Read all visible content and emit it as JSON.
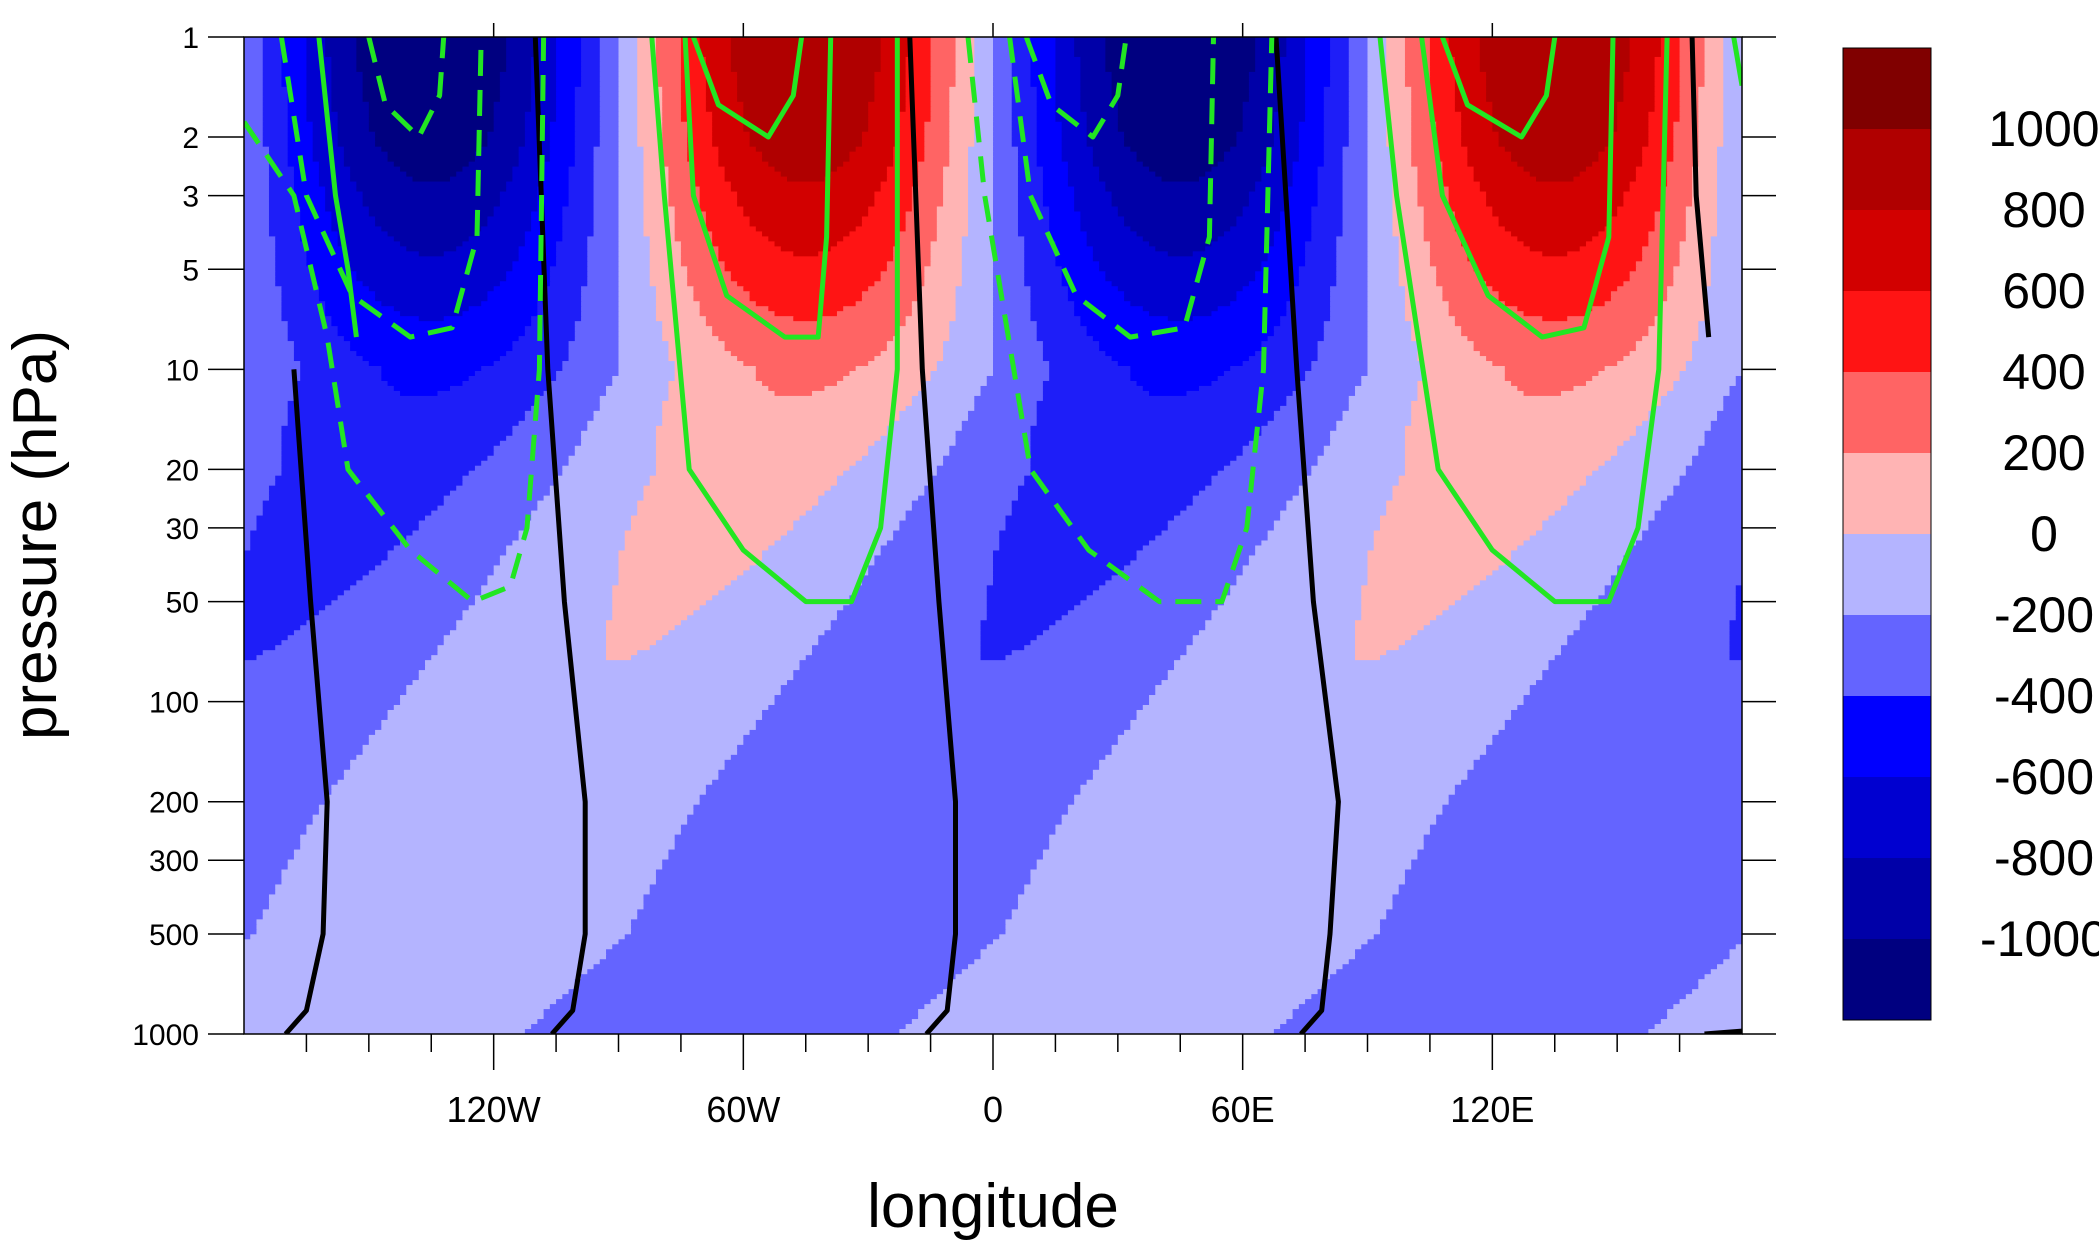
{
  "chart_data": {
    "type": "contour",
    "title": "",
    "xlabel": "longitude",
    "ylabel": "pressure (hPa)",
    "x_axis": {
      "range": [
        -180,
        180
      ],
      "ticks": [
        {
          "value": -120,
          "label": "120W"
        },
        {
          "value": -60,
          "label": "60W"
        },
        {
          "value": 0,
          "label": "0"
        },
        {
          "value": 60,
          "label": "60E"
        },
        {
          "value": 120,
          "label": "120E"
        }
      ],
      "minor_ticks": [
        -165,
        -150,
        -135,
        -105,
        -90,
        -75,
        -45,
        -30,
        -15,
        15,
        30,
        45,
        75,
        90,
        105,
        135,
        150,
        165
      ]
    },
    "y_axis": {
      "scale": "log",
      "reversed": true,
      "range": [
        1000,
        1
      ],
      "ticks": [
        {
          "value": 1,
          "label": "1"
        },
        {
          "value": 2,
          "label": "2"
        },
        {
          "value": 3,
          "label": "3"
        },
        {
          "value": 5,
          "label": "5"
        },
        {
          "value": 10,
          "label": "10"
        },
        {
          "value": 20,
          "label": "20"
        },
        {
          "value": 30,
          "label": "30"
        },
        {
          "value": 50,
          "label": "50"
        },
        {
          "value": 100,
          "label": "100"
        },
        {
          "value": 200,
          "label": "200"
        },
        {
          "value": 300,
          "label": "300"
        },
        {
          "value": 500,
          "label": "500"
        },
        {
          "value": 1000,
          "label": "1000"
        }
      ]
    },
    "shaded_field": {
      "field_model": "amplitude(p) * cos(lon - phase(p)), wavenumber 2",
      "amplitude_profile": [
        {
          "p": 1,
          "amplitude": 1260
        },
        {
          "p": 2,
          "amplitude": 1130
        },
        {
          "p": 5,
          "amplitude": 760
        },
        {
          "p": 10,
          "amplitude": 440
        },
        {
          "p": 20,
          "amplitude": 290
        },
        {
          "p": 50,
          "amplitude": 215
        },
        {
          "p": 100,
          "amplitude": 190
        },
        {
          "p": 200,
          "amplitude": 175
        },
        {
          "p": 300,
          "amplitude": 170
        },
        {
          "p": 500,
          "amplitude": 165
        },
        {
          "p": 1000,
          "amplitude": 160
        }
      ],
      "phase_profile": [
        {
          "p": 1,
          "phase": 135
        },
        {
          "p": 10,
          "phase": 135
        },
        {
          "p": 20,
          "phase": 122
        },
        {
          "p": 30,
          "phase": 112
        },
        {
          "p": 50,
          "phase": 100
        },
        {
          "p": 100,
          "phase": 82
        },
        {
          "p": 200,
          "phase": 64
        },
        {
          "p": 300,
          "phase": 56
        },
        {
          "p": 500,
          "phase": 47
        },
        {
          "p": 1000,
          "phase": 22
        }
      ],
      "levels": [
        -1000,
        -800,
        -600,
        -400,
        -200,
        0,
        200,
        400,
        600,
        800,
        1000
      ],
      "colors": [
        "#000080",
        "#0000a8",
        "#0000d0",
        "#0000ff",
        "#1e1ef8",
        "#6464ff",
        "#b4b4ff",
        "#ffb4b4",
        "#ff6464",
        "#ff1414",
        "#d20000",
        "#b00000",
        "#800000"
      ]
    },
    "line_contours": {
      "black_solid": {
        "description": "zero lines of the overlay field",
        "paths": [
          [
            [
              -168,
              10
            ],
            [
              -164,
              50
            ],
            [
              -160,
              200
            ],
            [
              -161,
              500
            ],
            [
              -165,
              850
            ],
            [
              -170,
              1000
            ]
          ],
          [
            [
              -110,
              1
            ],
            [
              -107,
              10
            ],
            [
              -103,
              50
            ],
            [
              -98,
              200
            ],
            [
              -98,
              500
            ],
            [
              -101,
              850
            ],
            [
              -106,
              1000
            ]
          ],
          [
            [
              -20,
              1
            ],
            [
              -17,
              10
            ],
            [
              -13,
              50
            ],
            [
              -9,
              200
            ],
            [
              -9,
              500
            ],
            [
              -11,
              850
            ],
            [
              -16,
              1000
            ]
          ],
          [
            [
              68,
              1
            ],
            [
              73,
              10
            ],
            [
              77,
              50
            ],
            [
              83,
              200
            ],
            [
              81,
              500
            ],
            [
              79,
              850
            ],
            [
              74,
              1000
            ]
          ],
          [
            [
              168,
              1
            ],
            [
              169,
              3
            ],
            [
              172,
              8
            ]
          ],
          [
            [
              171,
              1000
            ],
            [
              180,
              980
            ]
          ]
        ]
      },
      "green_solid": {
        "description": "positive contours of the overlay field",
        "paths": [
          [
            [
              -162,
              1
            ],
            [
              -158,
              3
            ],
            [
              -155,
              5
            ],
            [
              -153,
              8
            ]
          ],
          [
            [
              -82,
              1
            ],
            [
              -79,
              3
            ],
            [
              -73,
              20
            ],
            [
              -60,
              35
            ],
            [
              -45,
              50
            ],
            [
              -34,
              50
            ],
            [
              -27,
              30
            ],
            [
              -23,
              10
            ],
            [
              -23,
              1
            ]
          ],
          [
            [
              -72,
              1
            ],
            [
              -66,
              1.6
            ],
            [
              -54,
              2
            ],
            [
              -48,
              1.5
            ],
            [
              -46,
              1
            ]
          ],
          [
            [
              -74,
              1
            ],
            [
              -72,
              3
            ],
            [
              -64,
              6
            ],
            [
              -50,
              8
            ],
            [
              -42,
              8
            ],
            [
              -40,
              4
            ],
            [
              -39,
              1
            ]
          ],
          [
            [
              93,
              1
            ],
            [
              97,
              3
            ],
            [
              107,
              20
            ],
            [
              120,
              35
            ],
            [
              135,
              50
            ],
            [
              148,
              50
            ],
            [
              155,
              30
            ],
            [
              160,
              10
            ],
            [
              162,
              1
            ]
          ],
          [
            [
              108,
              1
            ],
            [
              114,
              1.6
            ],
            [
              127,
              2
            ],
            [
              133,
              1.5
            ],
            [
              135,
              1
            ]
          ],
          [
            [
              103,
              1
            ],
            [
              108,
              3
            ],
            [
              119,
              6
            ],
            [
              132,
              8
            ],
            [
              142,
              7.5
            ],
            [
              148,
              4
            ],
            [
              149,
              1
            ]
          ],
          [
            [
              178,
              1
            ],
            [
              180,
              1.4
            ]
          ]
        ]
      },
      "green_dashed": {
        "description": "negative contours of the overlay field",
        "paths": [
          [
            [
              -180,
              1.8
            ],
            [
              -168,
              3
            ],
            [
              -160,
              8
            ],
            [
              -155,
              20
            ],
            [
              -140,
              35
            ],
            [
              -125,
              50
            ],
            [
              -116,
              45
            ],
            [
              -112,
              30
            ],
            [
              -109,
              10
            ],
            [
              -108,
              1
            ]
          ],
          [
            [
              -150,
              1
            ],
            [
              -146,
              1.6
            ],
            [
              -138,
              2
            ],
            [
              -133,
              1.5
            ],
            [
              -132,
              1
            ]
          ],
          [
            [
              -171,
              1
            ],
            [
              -165,
              3
            ],
            [
              -154,
              6
            ],
            [
              -140,
              8
            ],
            [
              -130,
              7.5
            ],
            [
              -124,
              4
            ],
            [
              -123,
              1
            ]
          ],
          [
            [
              -6,
              1
            ],
            [
              -2,
              3
            ],
            [
              9,
              20
            ],
            [
              23,
              35
            ],
            [
              40,
              50
            ],
            [
              55,
              50
            ],
            [
              61,
              30
            ],
            [
              65,
              10
            ],
            [
              67,
              1
            ]
          ],
          [
            [
              8,
              1
            ],
            [
              14,
              1.6
            ],
            [
              24,
              2
            ],
            [
              30,
              1.5
            ],
            [
              32,
              1
            ]
          ],
          [
            [
              4,
              1
            ],
            [
              9,
              3
            ],
            [
              20,
              6
            ],
            [
              33,
              8
            ],
            [
              46,
              7.5
            ],
            [
              52,
              4
            ],
            [
              53,
              1
            ]
          ]
        ]
      }
    },
    "colorbar": {
      "labels": [
        "1000",
        "800",
        "600",
        "400",
        "200",
        "0",
        "-200",
        "-400",
        "-600",
        "-800",
        "-1000"
      ],
      "colors_top_to_bottom": [
        "#800000",
        "#b00000",
        "#d20000",
        "#ff1414",
        "#ff6464",
        "#ffb4b4",
        "#b4b4ff",
        "#6464ff",
        "#0000ff",
        "#0000d0",
        "#0000a8",
        "#000080"
      ]
    }
  }
}
